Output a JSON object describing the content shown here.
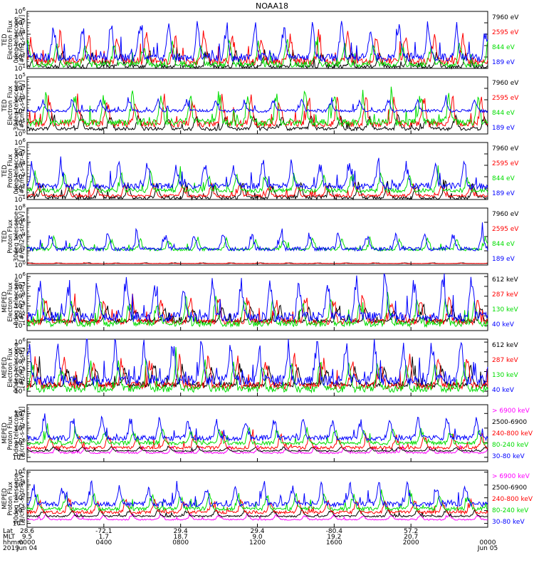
{
  "title": "NOAA18",
  "colors": {
    "black": "#000000",
    "red": "#ff0000",
    "green": "#00dd00",
    "blue": "#0000ff",
    "magenta": "#ff00ff"
  },
  "chart_data": [
    {
      "type": "line",
      "ylabel": [
        "TED",
        "Electron Flux",
        "0deg telescope",
        "[#/cm2-s-str-eV]"
      ],
      "yscale": "log",
      "ytick_exponents": [
        1,
        2,
        3,
        4,
        5,
        6
      ],
      "ylim_exp": [
        1,
        6
      ],
      "series": [
        {
          "name": "7960 eV",
          "color": "#000000",
          "base": 1.0,
          "amp": 1.3
        },
        {
          "name": "2595 eV",
          "color": "#ff0000",
          "base": 1.3,
          "amp": 2.5
        },
        {
          "name": "844 eV",
          "color": "#00dd00",
          "base": 1.1,
          "amp": 2.0
        },
        {
          "name": "189 eV",
          "color": "#0000ff",
          "base": 1.6,
          "amp": 3.0
        }
      ]
    },
    {
      "type": "line",
      "ylabel": [
        "TED",
        "Electron Flux",
        "30deg telescope",
        "[#/cm2-s-str-eV]"
      ],
      "yscale": "log",
      "ytick_exponents": [
        0,
        1,
        2,
        3,
        4,
        5
      ],
      "ylim_exp": [
        0,
        5
      ],
      "series": [
        {
          "name": "7960 eV",
          "color": "#000000",
          "base": 0.3,
          "amp": 1.2
        },
        {
          "name": "2595 eV",
          "color": "#ff0000",
          "base": 0.6,
          "amp": 2.4
        },
        {
          "name": "844 eV",
          "color": "#00dd00",
          "base": 0.7,
          "amp": 2.6
        },
        {
          "name": "189 eV",
          "color": "#0000ff",
          "base": 1.9,
          "amp": 1.0
        }
      ]
    },
    {
      "type": "line",
      "ylabel": [
        "TED",
        "Proton Flux",
        "0deg telescope",
        "[#/cm2-s-str-eV]"
      ],
      "yscale": "log",
      "ytick_exponents": [
        1,
        2,
        3,
        4,
        5,
        6
      ],
      "ylim_exp": [
        1,
        6
      ],
      "series": [
        {
          "name": "7960 eV",
          "color": "#000000",
          "base": 1.0,
          "amp": 1.3
        },
        {
          "name": "2595 eV",
          "color": "#ff0000",
          "base": 1.2,
          "amp": 1.0
        },
        {
          "name": "844 eV",
          "color": "#00dd00",
          "base": 1.6,
          "amp": 1.5
        },
        {
          "name": "189 eV",
          "color": "#0000ff",
          "base": 1.9,
          "amp": 2.2
        }
      ]
    },
    {
      "type": "line",
      "ylabel": [
        "TED",
        "Proton Flux",
        "30deg telescope",
        "[#/cm2-s-str-eV]"
      ],
      "yscale": "log",
      "ytick_exponents": [
        0,
        2,
        4,
        6,
        8
      ],
      "ylim_exp": [
        0,
        8
      ],
      "series": [
        {
          "name": "7960 eV",
          "color": "#000000",
          "base": 0.2,
          "amp": 0.1
        },
        {
          "name": "2595 eV",
          "color": "#ff0000",
          "base": 0.2,
          "amp": 0.1
        },
        {
          "name": "844 eV",
          "color": "#00dd00",
          "base": 2.0,
          "amp": 1.6
        },
        {
          "name": "189 eV",
          "color": "#0000ff",
          "base": 2.0,
          "amp": 2.2
        }
      ]
    },
    {
      "type": "line",
      "ylabel": [
        "MEPED",
        "Electron Flux",
        "0deg telescope",
        "[#/cm2-s-str]"
      ],
      "yscale": "log",
      "ytick_exponents": [
        1,
        2,
        3,
        4,
        5,
        6
      ],
      "ylim_exp": [
        0.5,
        6.3
      ],
      "series": [
        {
          "name": "612 keV",
          "color": "#000000",
          "base": 1.3,
          "amp": 1.5
        },
        {
          "name": "287 keV",
          "color": "#ff0000",
          "base": 1.1,
          "amp": 2.5
        },
        {
          "name": "130 keV",
          "color": "#00dd00",
          "base": 0.9,
          "amp": 2.5
        },
        {
          "name": "40 keV",
          "color": "#0000ff",
          "base": 1.4,
          "amp": 4.0
        }
      ]
    },
    {
      "type": "line",
      "ylabel": [
        "MEPED",
        "Electron Flux",
        "90deg telescope",
        "[#/cm2-s-str]"
      ],
      "yscale": "log",
      "ytick_exponents": [
        1,
        2,
        3,
        4,
        5,
        6
      ],
      "ylim_exp": [
        0.5,
        6.3
      ],
      "series": [
        {
          "name": "612 keV",
          "color": "#000000",
          "base": 1.4,
          "amp": 2.0
        },
        {
          "name": "287 keV",
          "color": "#ff0000",
          "base": 1.2,
          "amp": 3.0
        },
        {
          "name": "130 keV",
          "color": "#00dd00",
          "base": 0.9,
          "amp": 2.8
        },
        {
          "name": "40 keV",
          "color": "#0000ff",
          "base": 1.6,
          "amp": 4.2
        }
      ]
    },
    {
      "type": "line",
      "ylabel": [
        "MEPED",
        "Proton Flux",
        "0deg telescope",
        "[#/cm2-s-str-keV]"
      ],
      "yscale": "log",
      "ytick_exponents": [
        -2,
        0,
        2,
        4
      ],
      "ylim_exp": [
        -2.6,
        5.2
      ],
      "series": [
        {
          "name": "> 6900 keV",
          "color": "#ff00ff",
          "base": -1.5,
          "amp": 0.9
        },
        {
          "name": "2500-6900",
          "color": "#000000",
          "base": -1.2,
          "amp": 0.6
        },
        {
          "name": "240-800 keV",
          "color": "#ff0000",
          "base": -0.9,
          "amp": 1.7
        },
        {
          "name": "80-240 keV",
          "color": "#00dd00",
          "base": -0.3,
          "amp": 2.0
        },
        {
          "name": "30-80 keV",
          "color": "#0000ff",
          "base": 0.3,
          "amp": 2.8
        }
      ]
    },
    {
      "type": "line",
      "ylabel": [
        "MEPED",
        "Proton Flux",
        "90deg telescope",
        "[#/cm2-s-str-keV]"
      ],
      "yscale": "log",
      "ytick_exponents": [
        -2,
        0,
        2,
        4,
        6
      ],
      "ylim_exp": [
        -2.6,
        6.3
      ],
      "series": [
        {
          "name": "> 6900 keV",
          "color": "#ff00ff",
          "base": -1.5,
          "amp": 0.8
        },
        {
          "name": "2500-6900",
          "color": "#000000",
          "base": -1.0,
          "amp": 1.0
        },
        {
          "name": "240-800 keV",
          "color": "#ff0000",
          "base": -0.5,
          "amp": 2.0
        },
        {
          "name": "80-240 keV",
          "color": "#00dd00",
          "base": 0.0,
          "amp": 2.3
        },
        {
          "name": "30-80 keV",
          "color": "#0000ff",
          "base": 0.6,
          "amp": 3.2
        }
      ]
    }
  ],
  "x_axis": {
    "row_labels": [
      "Lat",
      "MLT",
      "hhmm",
      "2019"
    ],
    "ticks": [
      {
        "lat": "28.6",
        "mlt": "9.5",
        "hhmm": "0000",
        "date": "Jun 04"
      },
      {
        "lat": "-72.1",
        "mlt": "1.7",
        "hhmm": "0400",
        "date": ""
      },
      {
        "lat": "29.4",
        "mlt": "18.7",
        "hhmm": "0800",
        "date": ""
      },
      {
        "lat": "29.4",
        "mlt": "9.0",
        "hhmm": "1200",
        "date": ""
      },
      {
        "lat": "-80.4",
        "mlt": "19.2",
        "hhmm": "1600",
        "date": ""
      },
      {
        "lat": "57.2",
        "mlt": "20.7",
        "hhmm": "2000",
        "date": ""
      },
      {
        "lat": "",
        "mlt": "",
        "hhmm": "0000",
        "date": "Jun 05"
      }
    ]
  }
}
